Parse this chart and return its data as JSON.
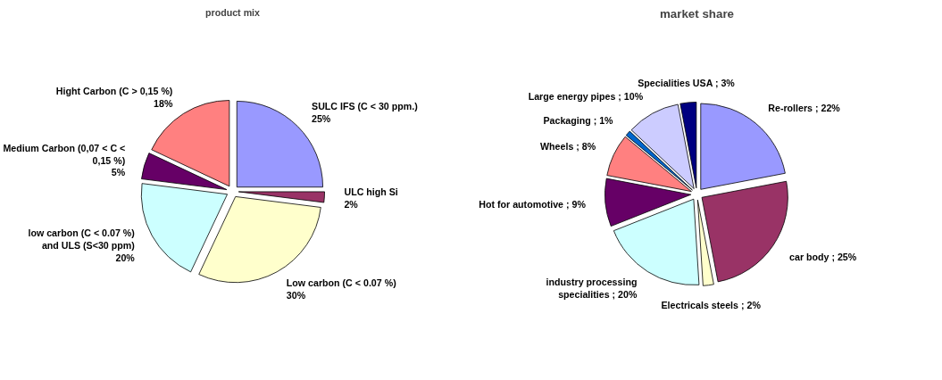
{
  "chart_data": [
    {
      "type": "pie",
      "title": "product mix",
      "categories": [
        "SULC IFS (C < 30 ppm.)",
        "ULC high Si",
        "Low carbon (C < 0.07 %)",
        "low carbon (C < 0.07 %) and ULS (S<30 ppm)",
        "Medium Carbon (0,07 < C < 0,15 %)",
        "Hight Carbon (C > 0,15 %)"
      ],
      "values": [
        25,
        2,
        30,
        20,
        5,
        18
      ],
      "value_labels": [
        "25%",
        "2%",
        "30%",
        "20%",
        "5%",
        "18%"
      ],
      "colors": [
        "#9999ff",
        "#993366",
        "#ffffcc",
        "#ccffff",
        "#660066",
        "#ff8080"
      ]
    },
    {
      "type": "pie",
      "title": "market share",
      "categories": [
        "Re-rollers",
        "car body",
        "Electricals steels",
        "industry processing specialities",
        "Hot for automotive",
        "Wheels",
        "Packaging",
        "Large energy pipes",
        "Specialities USA"
      ],
      "values": [
        22,
        25,
        2,
        20,
        9,
        8,
        1,
        10,
        3
      ],
      "value_labels": [
        "; 22%",
        "; 25%",
        "; 2%",
        "; 20%",
        "; 9%",
        "; 8%",
        "; 1%",
        "; 10%",
        "; 3%"
      ],
      "colors": [
        "#9999ff",
        "#993366",
        "#ffffcc",
        "#ccffff",
        "#660066",
        "#ff8080",
        "#0066cc",
        "#ccccff",
        "#000080"
      ]
    }
  ]
}
